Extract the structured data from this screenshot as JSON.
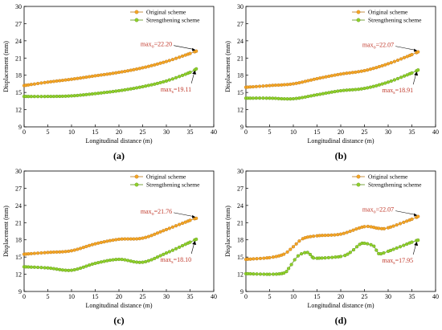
{
  "colors": {
    "original": "#f5a623",
    "original_edge": "#b8741a",
    "strengthening": "#8fd12a",
    "strengthening_edge": "#5a8f14",
    "annotation": "#c0392b"
  },
  "chart_data": [
    {
      "type": "line",
      "panel_label": "(a)",
      "xlabel": "Longitudinal distance (m)",
      "ylabel": "Displacement (mm)",
      "xlim": [
        0,
        40
      ],
      "ylim": [
        9,
        30
      ],
      "x_ticks": [
        0,
        5,
        10,
        15,
        20,
        25,
        30,
        35,
        40
      ],
      "y_ticks": [
        9,
        12,
        15,
        18,
        21,
        24,
        27,
        30
      ],
      "legend_position": "top-right",
      "series": [
        {
          "name": "Original scheme",
          "x": [
            0,
            5,
            10,
            15,
            20,
            25,
            30,
            35,
            36.3
          ],
          "y": [
            16.2,
            16.8,
            17.3,
            17.9,
            18.5,
            19.3,
            20.4,
            21.8,
            22.2
          ]
        },
        {
          "name": "Strengthening scheme",
          "x": [
            0,
            5,
            10,
            15,
            20,
            25,
            30,
            35,
            36.3
          ],
          "y": [
            14.3,
            14.3,
            14.4,
            14.8,
            15.3,
            16.0,
            17.0,
            18.5,
            19.11
          ]
        }
      ],
      "annotations": [
        {
          "text": "max",
          "sub": "o",
          "value": "=22.20",
          "x": 36.3,
          "y": 22.2
        },
        {
          "text": "max",
          "sub": "s",
          "value": "=19.11",
          "x": 36.3,
          "y": 19.11
        }
      ]
    },
    {
      "type": "line",
      "panel_label": "(b)",
      "xlabel": "Longitudinal distance (m)",
      "ylabel": "Displacement (mm)",
      "xlim": [
        0,
        40
      ],
      "ylim": [
        9,
        30
      ],
      "x_ticks": [
        0,
        5,
        10,
        15,
        20,
        25,
        30,
        35,
        40
      ],
      "y_ticks": [
        9,
        12,
        15,
        18,
        21,
        24,
        27,
        30
      ],
      "legend_position": "top-right",
      "series": [
        {
          "name": "Original scheme",
          "x": [
            0,
            5,
            10,
            15,
            20,
            25,
            30,
            35,
            36.3
          ],
          "y": [
            15.9,
            16.2,
            16.5,
            17.4,
            18.2,
            18.8,
            20.0,
            21.6,
            22.07
          ]
        },
        {
          "name": "Strengthening scheme",
          "x": [
            0,
            5,
            10,
            15,
            20,
            25,
            30,
            35,
            36.3
          ],
          "y": [
            14.0,
            14.0,
            13.9,
            14.6,
            15.3,
            15.7,
            16.8,
            18.4,
            18.91
          ]
        }
      ],
      "annotations": [
        {
          "text": "max",
          "sub": "o",
          "value": "=22.07",
          "x": 36.3,
          "y": 22.07
        },
        {
          "text": "max",
          "sub": "s",
          "value": "=18.91",
          "x": 36.3,
          "y": 18.91
        }
      ]
    },
    {
      "type": "line",
      "panel_label": "(c)",
      "xlabel": "Longitudinal distance (m)",
      "ylabel": "Displacement (mm)",
      "xlim": [
        0,
        40
      ],
      "ylim": [
        9,
        30
      ],
      "x_ticks": [
        0,
        5,
        10,
        15,
        20,
        25,
        30,
        35,
        40
      ],
      "y_ticks": [
        9,
        12,
        15,
        18,
        21,
        24,
        27,
        30
      ],
      "legend_position": "top-right",
      "series": [
        {
          "name": "Original scheme",
          "x": [
            0,
            5,
            10,
            15,
            20,
            25,
            30,
            35,
            36.3
          ],
          "y": [
            15.5,
            15.8,
            16.1,
            17.3,
            18.1,
            18.3,
            19.8,
            21.4,
            21.76
          ]
        },
        {
          "name": "Strengthening scheme",
          "x": [
            0,
            5,
            10,
            15,
            20,
            25,
            30,
            35,
            36.3
          ],
          "y": [
            13.3,
            13.1,
            12.7,
            13.9,
            14.6,
            14.1,
            15.7,
            17.6,
            18.1
          ]
        }
      ],
      "annotations": [
        {
          "text": "max",
          "sub": "o",
          "value": "=21.76",
          "x": 36.3,
          "y": 21.76
        },
        {
          "text": "max",
          "sub": "s",
          "value": "=18.10",
          "x": 36.3,
          "y": 18.1
        }
      ]
    },
    {
      "type": "line",
      "panel_label": "(d)",
      "xlabel": "Longitudinal distance (m)",
      "ylabel": "Displacement (mm)",
      "xlim": [
        0,
        40
      ],
      "ylim": [
        9,
        30
      ],
      "x_ticks": [
        0,
        5,
        10,
        15,
        20,
        25,
        30,
        35,
        40
      ],
      "y_ticks": [
        9,
        12,
        15,
        18,
        21,
        24,
        27,
        30
      ],
      "legend_position": "top-right",
      "series": [
        {
          "name": "Original scheme",
          "x": [
            0,
            5,
            8,
            10,
            12,
            15,
            20,
            25,
            28,
            30,
            35,
            36.3
          ],
          "y": [
            14.6,
            14.9,
            15.5,
            16.8,
            18.2,
            18.7,
            19.0,
            20.3,
            20.0,
            20.1,
            21.6,
            22.07
          ]
        },
        {
          "name": "Strengthening scheme",
          "x": [
            0,
            5,
            8,
            9,
            11,
            13,
            14,
            15,
            20,
            22,
            24,
            25,
            27,
            28,
            30,
            35,
            36.3
          ],
          "y": [
            12.1,
            12.0,
            12.2,
            13.0,
            15.2,
            15.8,
            15.0,
            14.8,
            15.1,
            15.8,
            17.2,
            17.4,
            16.9,
            15.6,
            16.0,
            17.6,
            17.95
          ]
        }
      ],
      "annotations": [
        {
          "text": "max",
          "sub": "o",
          "value": "=22.07",
          "x": 36.3,
          "y": 22.07
        },
        {
          "text": "max",
          "sub": "s",
          "value": "=17.95",
          "x": 36.3,
          "y": 17.95
        }
      ]
    }
  ]
}
